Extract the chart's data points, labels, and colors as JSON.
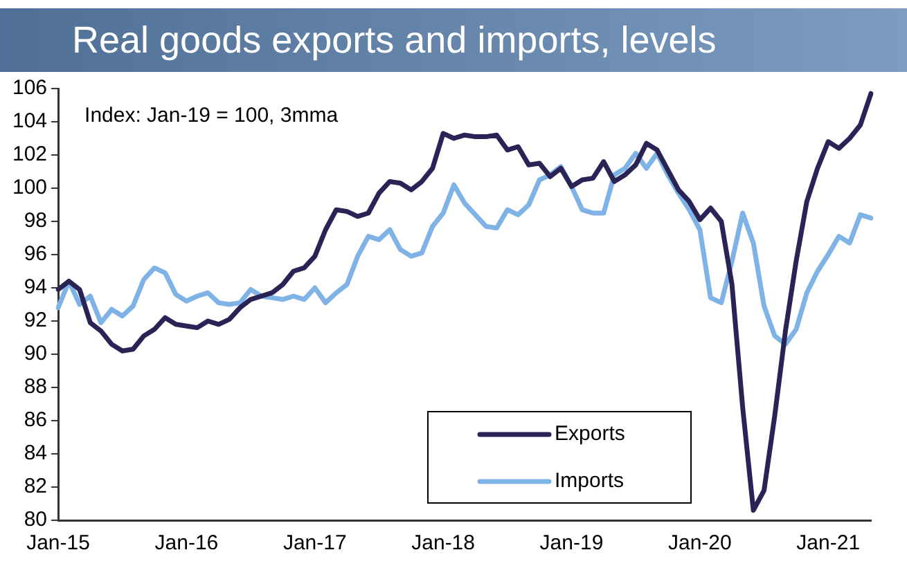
{
  "chart_data": {
    "type": "line",
    "title": "Real goods exports and imports, levels",
    "annotations": [
      "Index: Jan-19 = 100, 3mma"
    ],
    "categories": [
      "Jan-15",
      null,
      null,
      null,
      null,
      null,
      null,
      null,
      null,
      null,
      null,
      null,
      "Jan-16",
      null,
      null,
      null,
      null,
      null,
      null,
      null,
      null,
      null,
      null,
      null,
      "Jan-17",
      null,
      null,
      null,
      null,
      null,
      null,
      null,
      null,
      null,
      null,
      null,
      "Jan-18",
      null,
      null,
      null,
      null,
      null,
      null,
      null,
      null,
      null,
      null,
      null,
      "Jan-19",
      null,
      null,
      null,
      null,
      null,
      null,
      null,
      null,
      null,
      null,
      null,
      "Jan-20",
      null,
      null,
      null,
      null,
      null,
      null,
      null,
      null,
      null,
      null,
      null,
      "Jan-21",
      null,
      null,
      null,
      null
    ],
    "series": [
      {
        "name": "Exports",
        "color": "#2a2456",
        "values": [
          93.9,
          94.4,
          93.9,
          91.9,
          91.4,
          90.6,
          90.2,
          90.3,
          91.1,
          91.5,
          92.2,
          91.8,
          91.7,
          91.6,
          92.0,
          91.8,
          92.1,
          92.8,
          93.3,
          93.5,
          93.7,
          94.2,
          95.0,
          95.2,
          95.9,
          97.5,
          98.7,
          98.6,
          98.3,
          98.5,
          99.7,
          100.4,
          100.3,
          99.9,
          100.4,
          101.2,
          103.3,
          103.0,
          103.2,
          103.1,
          103.1,
          103.2,
          102.3,
          102.5,
          101.4,
          101.5,
          100.7,
          101.2,
          100.1,
          100.5,
          100.6,
          101.6,
          100.4,
          100.8,
          101.4,
          102.7,
          102.3,
          101.1,
          99.9,
          99.2,
          98.1,
          98.8,
          98.0,
          94.2,
          86.8,
          80.6,
          81.8,
          86.3,
          91.4,
          95.6,
          99.2,
          101.2,
          102.8,
          102.4,
          103.0,
          103.8,
          105.7
        ]
      },
      {
        "name": "Imports",
        "color": "#7fb2e5",
        "values": [
          92.8,
          94.4,
          93.0,
          93.5,
          91.9,
          92.7,
          92.3,
          92.9,
          94.5,
          95.2,
          94.9,
          93.6,
          93.2,
          93.5,
          93.7,
          93.1,
          93.0,
          93.1,
          93.9,
          93.5,
          93.4,
          93.3,
          93.5,
          93.3,
          94.0,
          93.1,
          93.7,
          94.2,
          95.9,
          97.1,
          96.9,
          97.5,
          96.3,
          95.9,
          96.1,
          97.7,
          98.5,
          100.2,
          99.1,
          98.4,
          97.7,
          97.6,
          98.7,
          98.4,
          99.0,
          100.5,
          100.8,
          101.3,
          100.1,
          98.7,
          98.5,
          98.5,
          100.8,
          101.2,
          102.1,
          101.2,
          102.1,
          100.8,
          99.7,
          98.7,
          97.5,
          93.4,
          93.1,
          95.6,
          98.5,
          96.7,
          92.9,
          91.1,
          90.6,
          91.5,
          93.7,
          95.0,
          96.0,
          97.1,
          96.7,
          98.4,
          98.2
        ]
      }
    ],
    "ylim": [
      80,
      106
    ],
    "yticks": [
      80,
      82,
      84,
      86,
      88,
      90,
      92,
      94,
      96,
      98,
      100,
      102,
      104,
      106
    ],
    "grid": false,
    "legend": "bottom",
    "marker": "none",
    "line_style": "solid"
  }
}
